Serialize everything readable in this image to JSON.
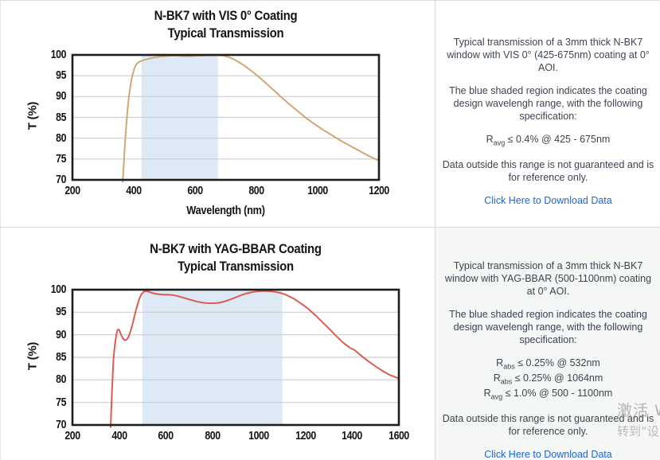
{
  "chart_data": [
    {
      "type": "line",
      "title": "N-BK7 with VIS 0° Coating",
      "subtitle": "Typical Transmission",
      "xlabel": "Wavelength (nm)",
      "ylabel": "T (%)",
      "xlim": [
        200,
        1200
      ],
      "ylim": [
        70,
        100
      ],
      "xticks": [
        "200",
        "400",
        "600",
        "800",
        "1000",
        "1200"
      ],
      "yticks": [
        "70",
        "75",
        "80",
        "85",
        "90",
        "95",
        "100"
      ],
      "grid": "horizontal",
      "shaded_region": {
        "x0": 425,
        "x1": 675,
        "color": "#dde9f4"
      },
      "series": [
        {
          "name": "typical transmission",
          "color": "#cfa873",
          "points": [
            [
              364,
              69.5
            ],
            [
              367,
              73
            ],
            [
              370,
              77
            ],
            [
              373,
              80.5
            ],
            [
              376,
              83.5
            ],
            [
              380,
              87
            ],
            [
              384,
              89.8
            ],
            [
              388,
              92
            ],
            [
              392,
              93.8
            ],
            [
              396,
              95.2
            ],
            [
              400,
              96.3
            ],
            [
              405,
              97.3
            ],
            [
              410,
              97.9
            ],
            [
              415,
              98.2
            ],
            [
              420,
              98.4
            ],
            [
              430,
              98.7
            ],
            [
              440,
              98.9
            ],
            [
              455,
              99.2
            ],
            [
              470,
              99.4
            ],
            [
              485,
              99.6
            ],
            [
              500,
              99.7
            ],
            [
              520,
              99.8
            ],
            [
              545,
              99.8
            ],
            [
              565,
              99.7
            ],
            [
              585,
              99.7
            ],
            [
              605,
              99.8
            ],
            [
              630,
              99.85
            ],
            [
              655,
              99.9
            ],
            [
              675,
              99.9
            ],
            [
              690,
              99.85
            ],
            [
              700,
              99.7
            ],
            [
              712,
              99.4
            ],
            [
              725,
              99
            ],
            [
              740,
              98.4
            ],
            [
              755,
              97.7
            ],
            [
              770,
              96.9
            ],
            [
              785,
              96.1
            ],
            [
              800,
              95.2
            ],
            [
              815,
              94.3
            ],
            [
              830,
              93.3
            ],
            [
              845,
              92.3
            ],
            [
              860,
              91.3
            ],
            [
              875,
              90.3
            ],
            [
              890,
              89.3
            ],
            [
              905,
              88.3
            ],
            [
              920,
              87.4
            ],
            [
              935,
              86.5
            ],
            [
              950,
              85.6
            ],
            [
              965,
              84.7
            ],
            [
              980,
              83.9
            ],
            [
              1000,
              82.9
            ],
            [
              1020,
              81.9
            ],
            [
              1040,
              81
            ],
            [
              1060,
              80.1
            ],
            [
              1080,
              79.2
            ],
            [
              1100,
              78.4
            ],
            [
              1120,
              77.6
            ],
            [
              1140,
              76.8
            ],
            [
              1160,
              76
            ],
            [
              1180,
              75.3
            ],
            [
              1200,
              74.6
            ]
          ]
        }
      ]
    },
    {
      "type": "line",
      "title": "N-BK7 with YAG-BBAR Coating",
      "subtitle": "Typical Transmission",
      "xlabel": "",
      "ylabel": "T (%)",
      "xlim": [
        200,
        1600
      ],
      "ylim": [
        70,
        100
      ],
      "xticks": [
        "200",
        "400",
        "600",
        "800",
        "1000",
        "1200",
        "1400",
        "1600"
      ],
      "yticks": [
        "70",
        "75",
        "80",
        "85",
        "90",
        "95",
        "100"
      ],
      "grid": "horizontal",
      "shaded_region": {
        "x0": 500,
        "x1": 1100,
        "color": "#dde9f4"
      },
      "series": [
        {
          "name": "typical transmission",
          "color": "#dd5b50",
          "points": [
            [
              364,
              69.5
            ],
            [
              367,
              74
            ],
            [
              370,
              78
            ],
            [
              373,
              81.5
            ],
            [
              376,
              84.5
            ],
            [
              380,
              86.8
            ],
            [
              384,
              88.5
            ],
            [
              388,
              90
            ],
            [
              392,
              90.9
            ],
            [
              396,
              91.2
            ],
            [
              400,
              91.1
            ],
            [
              405,
              90.5
            ],
            [
              410,
              89.8
            ],
            [
              418,
              89.1
            ],
            [
              425,
              88.8
            ],
            [
              432,
              88.9
            ],
            [
              440,
              89.5
            ],
            [
              448,
              90.6
            ],
            [
              456,
              92
            ],
            [
              464,
              93.7
            ],
            [
              472,
              95.4
            ],
            [
              480,
              96.9
            ],
            [
              488,
              98.1
            ],
            [
              496,
              99
            ],
            [
              505,
              99.5
            ],
            [
              515,
              99.7
            ],
            [
              525,
              99.6
            ],
            [
              540,
              99.3
            ],
            [
              555,
              99.1
            ],
            [
              570,
              99
            ],
            [
              590,
              98.9
            ],
            [
              610,
              98.9
            ],
            [
              630,
              98.8
            ],
            [
              650,
              98.6
            ],
            [
              670,
              98.3
            ],
            [
              690,
              98
            ],
            [
              710,
              97.7
            ],
            [
              730,
              97.4
            ],
            [
              750,
              97.2
            ],
            [
              770,
              97.05
            ],
            [
              790,
              97
            ],
            [
              810,
              97
            ],
            [
              830,
              97.1
            ],
            [
              850,
              97.35
            ],
            [
              870,
              97.7
            ],
            [
              890,
              98.1
            ],
            [
              910,
              98.5
            ],
            [
              930,
              98.9
            ],
            [
              950,
              99.2
            ],
            [
              970,
              99.45
            ],
            [
              990,
              99.6
            ],
            [
              1010,
              99.7
            ],
            [
              1030,
              99.7
            ],
            [
              1050,
              99.65
            ],
            [
              1070,
              99.5
            ],
            [
              1090,
              99.3
            ],
            [
              1110,
              99
            ],
            [
              1130,
              98.5
            ],
            [
              1150,
              98
            ],
            [
              1170,
              97.3
            ],
            [
              1190,
              96.6
            ],
            [
              1210,
              95.8
            ],
            [
              1240,
              94.4
            ],
            [
              1270,
              92.9
            ],
            [
              1300,
              91.4
            ],
            [
              1330,
              89.8
            ],
            [
              1360,
              88.3
            ],
            [
              1390,
              87.1
            ],
            [
              1410,
              86.6
            ],
            [
              1440,
              85.3
            ],
            [
              1470,
              84.1
            ],
            [
              1500,
              83
            ],
            [
              1530,
              82
            ],
            [
              1560,
              81.1
            ],
            [
              1600,
              80.3
            ]
          ]
        }
      ]
    }
  ],
  "panels": [
    {
      "paragraphs": [
        "Typical transmission of a 3mm thick N-BK7 window with VIS 0° (425-675nm) coating at 0° AOI.",
        "The blue shaded region indicates the coating design wavelengh range, with the following specification:"
      ],
      "specs": [
        {
          "base": "R",
          "sub": "avg",
          "rest": " ≤ 0.4% @ 425 - 675nm"
        }
      ],
      "note": "Data outside this range is not guaranteed and is for reference only.",
      "link": "Click Here to Download Data"
    },
    {
      "paragraphs": [
        "Typical transmission of a 3mm thick N-BK7 window with YAG-BBAR (500-1100nm) coating at 0° AOI.",
        "The blue shaded region indicates the coating design wavelengh range, with the following specification:"
      ],
      "specs": [
        {
          "base": "R",
          "sub": "abs",
          "rest": " ≤ 0.25% @ 532nm"
        },
        {
          "base": "R",
          "sub": "abs",
          "rest": " ≤ 0.25% @ 1064nm"
        },
        {
          "base": "R",
          "sub": "avg",
          "rest": " ≤ 1.0% @ 500 - 1100nm"
        }
      ],
      "note": "Data outside this range is not guaranteed and is for reference only.",
      "link": "Click Here to Download Data"
    }
  ],
  "watermark": {
    "line1": "激活 W",
    "line2": "转到“设"
  },
  "colors": {
    "band": "#dde9f4",
    "vis_curve": "#cfa873",
    "yag_curve": "#dd5b50",
    "link": "#1e66d3"
  }
}
